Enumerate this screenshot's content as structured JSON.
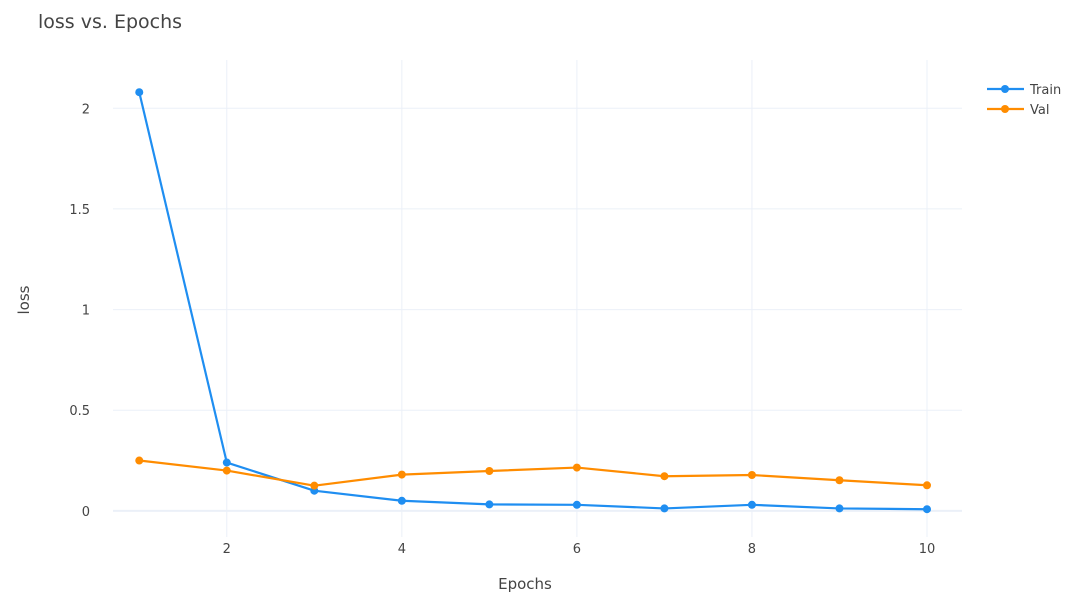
{
  "chart_data": {
    "type": "line",
    "title": "loss vs. Epochs",
    "xlabel": "Epochs",
    "ylabel": "loss",
    "xlim": [
      0.7,
      10.4
    ],
    "ylim": [
      -0.13,
      2.24
    ],
    "xticks": [
      2,
      4,
      6,
      8,
      10
    ],
    "xtick_labels": [
      "2",
      "4",
      "6",
      "8",
      "10"
    ],
    "yticks": [
      0,
      0.5,
      1,
      1.5,
      2
    ],
    "ytick_labels": [
      "0",
      "0.5",
      "1",
      "1.5",
      "2"
    ],
    "grid": true,
    "legend_position": "top-right",
    "x": [
      1,
      2,
      3,
      4,
      5,
      6,
      7,
      8,
      9,
      10
    ],
    "series": [
      {
        "name": "Train",
        "color": "#1f8ef1",
        "values": [
          2.08,
          0.24,
          0.1,
          0.05,
          0.032,
          0.03,
          0.012,
          0.03,
          0.012,
          0.008
        ]
      },
      {
        "name": "Val",
        "color": "#ff8c00",
        "values": [
          0.25,
          0.2,
          0.125,
          0.18,
          0.198,
          0.215,
          0.172,
          0.178,
          0.152,
          0.127
        ]
      }
    ]
  }
}
